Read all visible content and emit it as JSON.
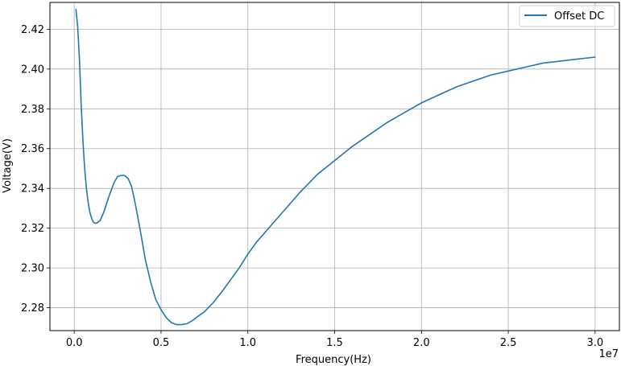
{
  "chart_data": {
    "type": "line",
    "title": "",
    "xlabel": "Frequency(Hz)",
    "ylabel": "Voltage(V)",
    "x_offset_label": "1e7",
    "xlim": [
      -1400000,
      31400000
    ],
    "ylim": [
      2.2685,
      2.4335
    ],
    "x_ticks": [
      0,
      5000000,
      10000000,
      15000000,
      20000000,
      25000000,
      30000000
    ],
    "x_tick_labels": [
      "0.0",
      "0.5",
      "1.0",
      "1.5",
      "2.0",
      "2.5",
      "3.0"
    ],
    "y_ticks": [
      2.28,
      2.3,
      2.32,
      2.34,
      2.36,
      2.38,
      2.4,
      2.42
    ],
    "y_tick_labels": [
      "2.28",
      "2.30",
      "2.32",
      "2.34",
      "2.36",
      "2.38",
      "2.40",
      "2.42"
    ],
    "grid": true,
    "legend_position": "top-right",
    "series": [
      {
        "name": "Offset DC",
        "color": "#1f77b4",
        "x": [
          100000,
          200000,
          300000,
          400000,
          500000,
          600000,
          700000,
          800000,
          900000,
          1000000,
          1100000,
          1200000,
          1300000,
          1500000,
          1700000,
          2000000,
          2300000,
          2500000,
          2700000,
          2900000,
          3100000,
          3300000,
          3500000,
          3800000,
          4100000,
          4400000,
          4700000,
          5000000,
          5300000,
          5600000,
          5900000,
          6200000,
          6500000,
          6800000,
          7100000,
          7500000,
          8000000,
          8500000,
          9000000,
          9500000,
          10000000,
          10500000,
          11000000,
          11500000,
          12000000,
          13000000,
          14000000,
          15000000,
          16000000,
          17000000,
          18000000,
          19000000,
          20000000,
          21000000,
          22000000,
          23000000,
          24000000,
          25000000,
          26000000,
          27000000,
          28000000,
          29000000,
          30000000
        ],
        "y": [
          2.43,
          2.421,
          2.405,
          2.382,
          2.364,
          2.35,
          2.34,
          2.333,
          2.328,
          2.325,
          2.323,
          2.3225,
          2.3225,
          2.324,
          2.328,
          2.336,
          2.343,
          2.346,
          2.3465,
          2.3465,
          2.345,
          2.341,
          2.333,
          2.319,
          2.304,
          2.293,
          2.284,
          2.279,
          2.275,
          2.2725,
          2.2715,
          2.2715,
          2.272,
          2.2735,
          2.2755,
          2.278,
          2.2825,
          2.288,
          2.294,
          2.3,
          2.307,
          2.313,
          2.318,
          2.323,
          2.328,
          2.338,
          2.347,
          2.354,
          2.361,
          2.367,
          2.373,
          2.378,
          2.383,
          2.387,
          2.391,
          2.394,
          2.397,
          2.399,
          2.401,
          2.403,
          2.404,
          2.405,
          2.406
        ]
      }
    ]
  }
}
